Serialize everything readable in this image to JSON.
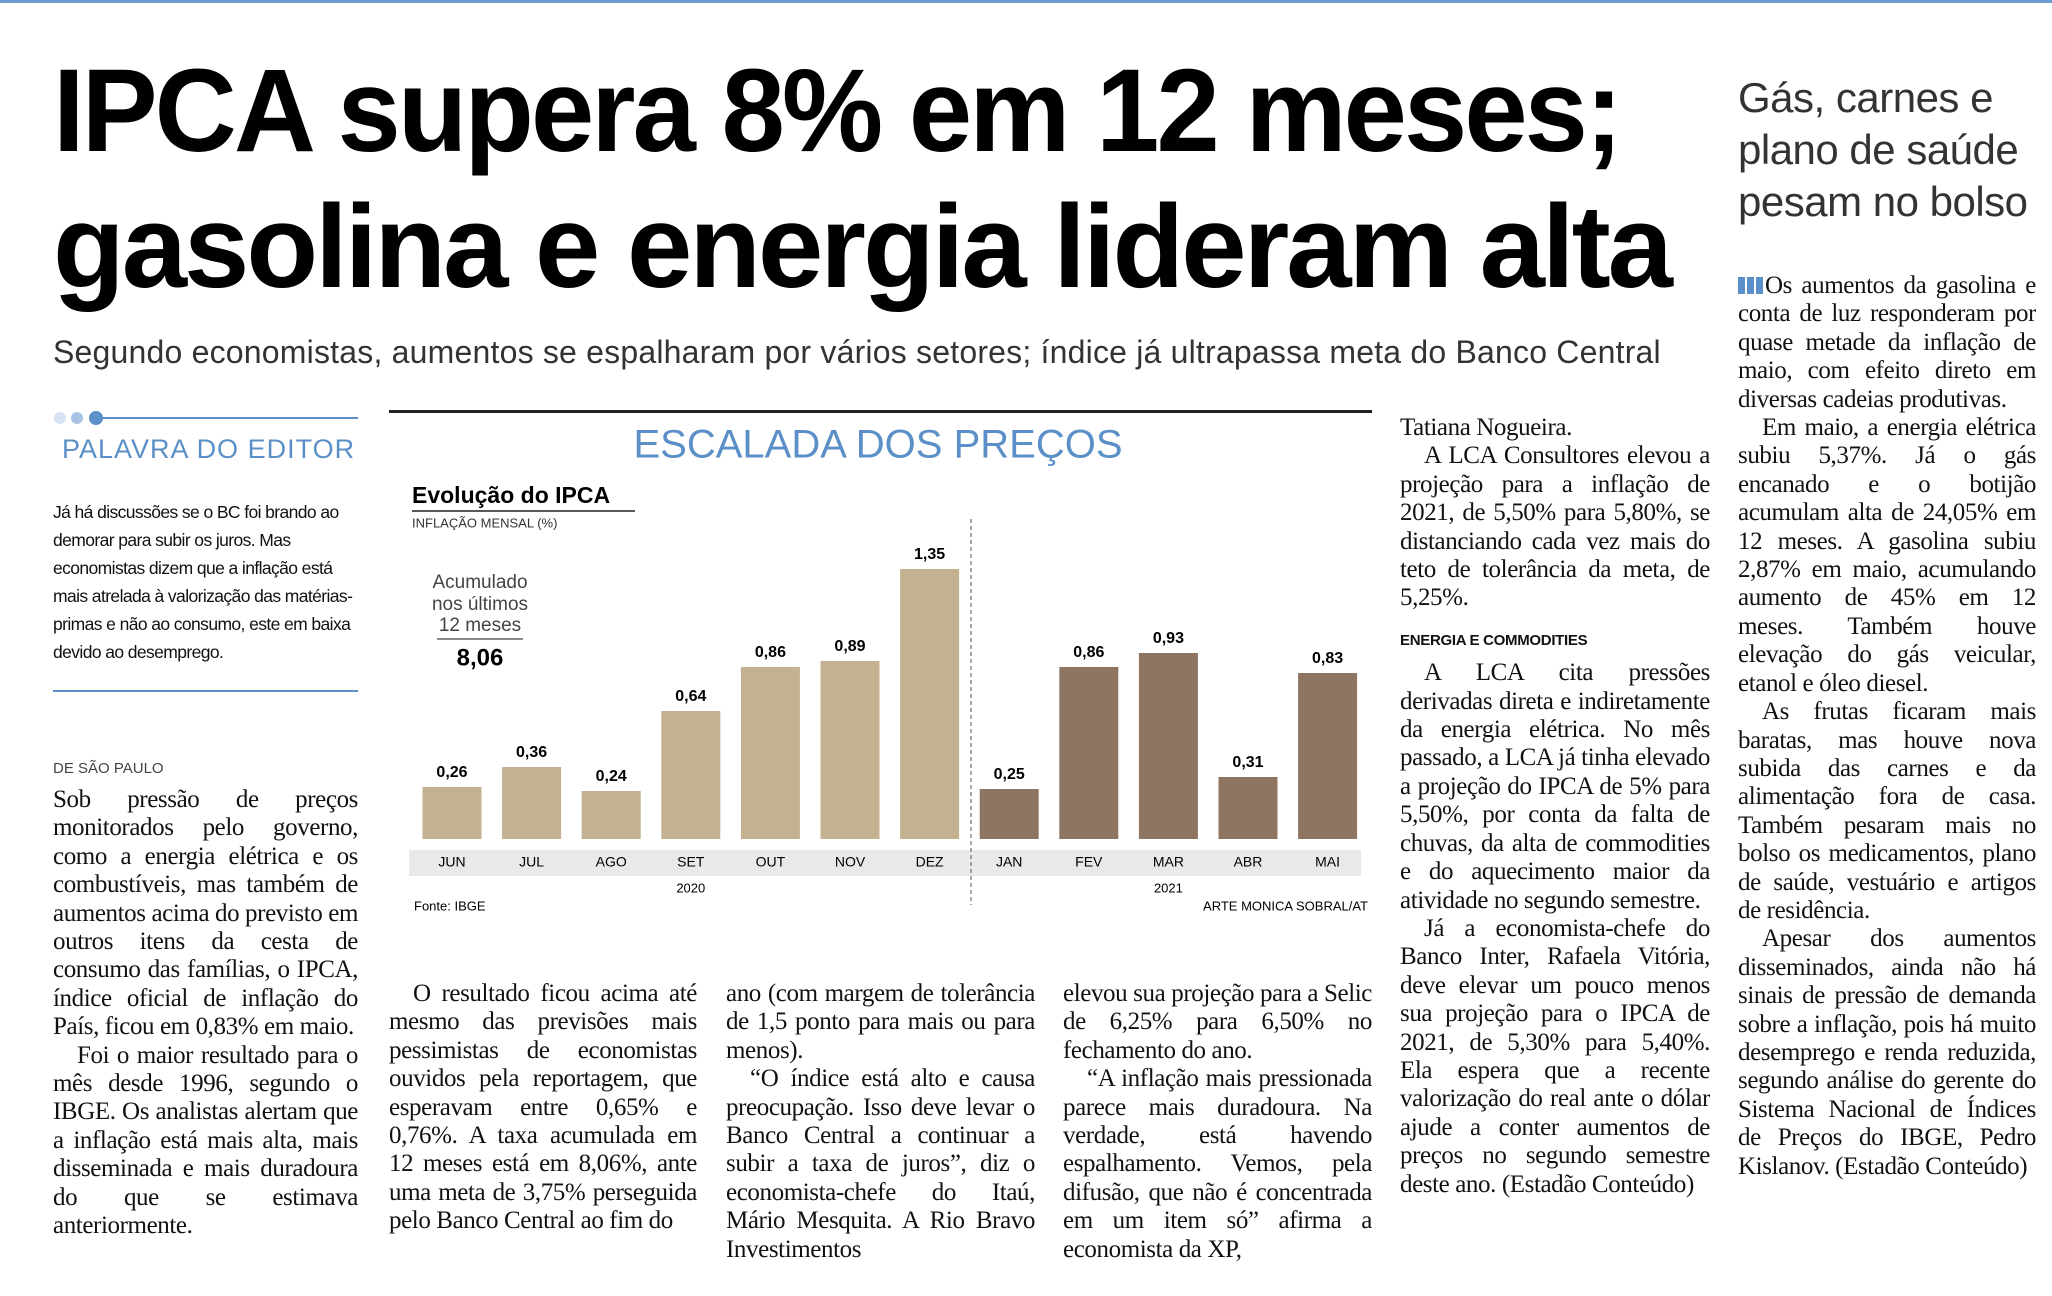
{
  "header": {
    "headline": [
      "IPCA supera 8% em 12 meses;",
      "gasolina e energia lideram alta"
    ],
    "subtitle": "Segundo economistas, aumentos se espalharam por vários setores; índice já ultrapassa meta do Banco Central"
  },
  "editor_note": {
    "title": "PALAVRA DO EDITOR",
    "text": "Já há discussões se o BC foi brando ao demorar para subir os juros. Mas economistas dizem que a inflação está mais atrelada à valorização das matérias-primas e não ao consumo, este em baixa devido ao desemprego."
  },
  "article": {
    "dateline": "DE SÃO PAULO",
    "columns": [
      [
        {
          "p": "Sob pressão de preços monitorados pelo governo, como a energia elétrica e os combustíveis, mas também de aumentos acima do previsto em outros itens da cesta de consumo das famílias, o IPCA, índice oficial de inflação do País, ficou em 0,83% em maio."
        },
        {
          "p": "Foi o maior resultado para o mês desde 1996, segundo o IBGE. Os analistas alertam que a inflação está mais alta, mais disseminada e mais duradoura do que se estimava anteriormente."
        }
      ],
      [
        {
          "p": "O resultado ficou acima até mesmo das previsões mais pessimistas de economistas ouvidos pela reportagem, que esperavam entre 0,65% e 0,76%. A taxa acumulada em 12 meses está em 8,06%, ante uma meta de 3,75% perseguida pelo Banco Central ao fim do"
        }
      ],
      [
        {
          "p": "ano (com margem de tolerância de 1,5 ponto para mais ou para menos)."
        },
        {
          "p": "“O índice está alto e causa preocupação. Isso deve levar o Banco Central a continuar a subir a taxa de juros”, diz o economista-chefe do Itaú, Mário Mesquita. A Rio Bravo Investimentos"
        }
      ],
      [
        {
          "p": "elevou sua projeção para a Selic de 6,25% para 6,50% no fechamento do ano."
        },
        {
          "p": "“A inflação mais pressionada parece mais duradoura. Na verdade, está havendo espalhamento. Vemos, pela difusão, que não é concentrada em um item só” afirma a economista da XP,"
        }
      ],
      [
        {
          "p": "Tatiana Nogueira."
        },
        {
          "p": "A LCA Consultores elevou a projeção para a inflação de 2021, de 5,50% para 5,80%, se distanciando cada vez mais do teto de tolerância da meta, de 5,25%."
        },
        {
          "h": "ENERGIA E COMMODITIES"
        },
        {
          "p": "A LCA cita pressões derivadas direta e indiretamente da energia elétrica. No mês passado, a LCA já tinha elevado a projeção do IPCA de 5% para 5,50%, por conta da falta de chuvas, da alta de commodities e do aquecimento maior da atividade no segundo semestre."
        },
        {
          "p": "Já a economista-chefe do Banco Inter, Rafaela Vitória, deve elevar um pouco menos sua projeção para o IPCA de 2021, de 5,30% para 5,40%. Ela espera que a recente valorização do real ante o dólar ajude a conter aumentos de preços no segundo semestre deste ano. (Estadão Conteúdo)"
        }
      ]
    ]
  },
  "sidebar": {
    "title": "Gás, carnes e plano de saúde pesam no bolso",
    "paragraphs": [
      "Os aumentos da gasolina e conta de luz responderam por quase metade da inflação de maio, com efeito direto em diversas cadeias produtivas.",
      "Em maio, a energia elétrica subiu 5,37%. Já o gás encanado e o botijão acumulam alta de 24,05% em 12 meses. A gasolina subiu 2,87% em maio, acumulando aumento de 45% em 12 meses. Também houve elevação do gás veicular, etanol e óleo diesel.",
      "As frutas ficaram mais baratas, mas houve nova subida das carnes e da alimentação fora de casa. Também pesaram mais no bolso os medicamentos, plano de saúde, vestuário e artigos de residência.",
      "Apesar dos aumentos disseminados, ainda não há sinais de pressão de demanda sobre a inflação, pois há muito desemprego e renda reduzida, segundo análise do gerente do Sistema Nacional de Índices de Preços do IBGE, Pedro Kislanov. (Estadão Conteúdo)"
    ]
  },
  "chart_data": {
    "type": "bar",
    "title": "ESCALADA DOS PREÇOS",
    "chart_title": "Evolução do IPCA",
    "y_label": "INFLAÇÃO MENSAL (%)",
    "annotation": [
      "Acumulado",
      "nos últimos",
      "12 meses"
    ],
    "annotation_value": 8.06,
    "annotation_value_label": "8,06",
    "series": [
      {
        "name": "2020",
        "color": "#c3b18f",
        "categories": [
          "JUN",
          "JUL",
          "AGO",
          "SET",
          "OUT",
          "NOV",
          "DEZ"
        ],
        "values": [
          0.26,
          0.36,
          0.24,
          0.64,
          0.86,
          0.89,
          1.35
        ],
        "value_labels": [
          "0,26",
          "0,36",
          "0,24",
          "0,64",
          "0,86",
          "0,89",
          "1,35"
        ]
      },
      {
        "name": "2021",
        "color": "#8e7562",
        "categories": [
          "JAN",
          "FEV",
          "MAR",
          "ABR",
          "MAI"
        ],
        "values": [
          0.25,
          0.86,
          0.93,
          0.31,
          0.83
        ],
        "value_labels": [
          "0,25",
          "0,86",
          "0,93",
          "0,31",
          "0,83"
        ]
      }
    ],
    "source": "Fonte: IBGE",
    "credit": "ARTE MONICA SOBRAL/AT"
  }
}
